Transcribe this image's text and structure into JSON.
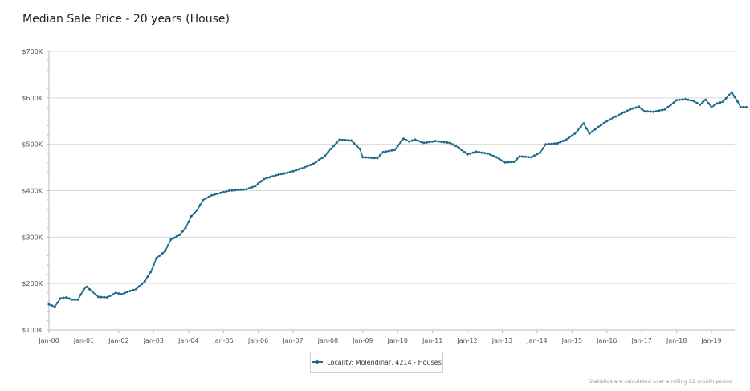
{
  "chart_data": {
    "type": "line",
    "title": "Median Sale Price - 20 years (House)",
    "xlabel": "",
    "ylabel": "",
    "ylim": [
      100000,
      700000
    ],
    "xlim": [
      "2000-01",
      "2019-09"
    ],
    "grid": true,
    "legend_placement": "bottom-center",
    "y_ticks": [
      100000,
      200000,
      300000,
      400000,
      500000,
      600000,
      700000
    ],
    "y_tick_labels": [
      "$100K",
      "$200K",
      "$300K",
      "$400K",
      "$500K",
      "$600K",
      "$700K"
    ],
    "x_tick_labels": [
      "Jan-00",
      "Jan-01",
      "Jan-02",
      "Jan-03",
      "Jan-04",
      "Jan-05",
      "Jan-06",
      "Jan-07",
      "Jan-08",
      "Jan-09",
      "Jan-10",
      "Jan-11",
      "Jan-12",
      "Jan-13",
      "Jan-14",
      "Jan-15",
      "Jan-16",
      "Jan-17",
      "Jan-18",
      "Jan-19"
    ],
    "series": [
      {
        "name": "Locality: Molendinar, 4214 - Houses",
        "color": "#1f6a8c",
        "points": [
          [
            "2000-01",
            155000
          ],
          [
            "2000-03",
            150000
          ],
          [
            "2000-05",
            168000
          ],
          [
            "2000-07",
            170000
          ],
          [
            "2000-09",
            165000
          ],
          [
            "2000-11",
            165000
          ],
          [
            "2001-01",
            188000
          ],
          [
            "2001-02",
            193000
          ],
          [
            "2001-04",
            182000
          ],
          [
            "2001-06",
            171000
          ],
          [
            "2001-09",
            170000
          ],
          [
            "2001-12",
            180000
          ],
          [
            "2002-02",
            177000
          ],
          [
            "2002-04",
            182000
          ],
          [
            "2002-07",
            188000
          ],
          [
            "2002-10",
            205000
          ],
          [
            "2002-12",
            225000
          ],
          [
            "2003-02",
            255000
          ],
          [
            "2003-05",
            270000
          ],
          [
            "2003-07",
            295000
          ],
          [
            "2003-10",
            305000
          ],
          [
            "2003-12",
            320000
          ],
          [
            "2004-02",
            345000
          ],
          [
            "2004-04",
            358000
          ],
          [
            "2004-06",
            380000
          ],
          [
            "2004-09",
            390000
          ],
          [
            "2004-12",
            395000
          ],
          [
            "2005-03",
            400000
          ],
          [
            "2005-09",
            403000
          ],
          [
            "2005-12",
            410000
          ],
          [
            "2006-03",
            425000
          ],
          [
            "2006-07",
            433000
          ],
          [
            "2006-12",
            440000
          ],
          [
            "2007-04",
            448000
          ],
          [
            "2007-08",
            458000
          ],
          [
            "2007-12",
            475000
          ],
          [
            "2008-02",
            490000
          ],
          [
            "2008-05",
            510000
          ],
          [
            "2008-09",
            508000
          ],
          [
            "2008-12",
            490000
          ],
          [
            "2009-01",
            472000
          ],
          [
            "2009-06",
            470000
          ],
          [
            "2009-08",
            483000
          ],
          [
            "2009-12",
            488000
          ],
          [
            "2010-03",
            512000
          ],
          [
            "2010-05",
            506000
          ],
          [
            "2010-07",
            510000
          ],
          [
            "2010-10",
            503000
          ],
          [
            "2011-02",
            507000
          ],
          [
            "2011-07",
            503000
          ],
          [
            "2011-10",
            493000
          ],
          [
            "2012-01",
            478000
          ],
          [
            "2012-04",
            484000
          ],
          [
            "2012-08",
            480000
          ],
          [
            "2012-11",
            472000
          ],
          [
            "2013-02",
            461000
          ],
          [
            "2013-05",
            462000
          ],
          [
            "2013-07",
            474000
          ],
          [
            "2013-11",
            472000
          ],
          [
            "2014-02",
            482000
          ],
          [
            "2014-04",
            500000
          ],
          [
            "2014-08",
            502000
          ],
          [
            "2014-11",
            510000
          ],
          [
            "2015-02",
            523000
          ],
          [
            "2015-05",
            545000
          ],
          [
            "2015-07",
            523000
          ],
          [
            "2015-10",
            537000
          ],
          [
            "2016-01",
            550000
          ],
          [
            "2016-05",
            563000
          ],
          [
            "2016-09",
            575000
          ],
          [
            "2016-12",
            581000
          ],
          [
            "2017-02",
            571000
          ],
          [
            "2017-05",
            570000
          ],
          [
            "2017-09",
            575000
          ],
          [
            "2018-01",
            595000
          ],
          [
            "2018-04",
            597000
          ],
          [
            "2018-07",
            593000
          ],
          [
            "2018-09",
            585000
          ],
          [
            "2018-11",
            596000
          ],
          [
            "2019-01",
            580000
          ],
          [
            "2019-03",
            588000
          ],
          [
            "2019-05",
            592000
          ],
          [
            "2019-07",
            606000
          ],
          [
            "2019-08",
            612000
          ],
          [
            "2019-10",
            592000
          ],
          [
            "2019-11",
            580000
          ],
          [
            "2020-01",
            580000
          ]
        ]
      }
    ]
  },
  "footnote": "Statistics are calculated over a rolling 12 month period"
}
